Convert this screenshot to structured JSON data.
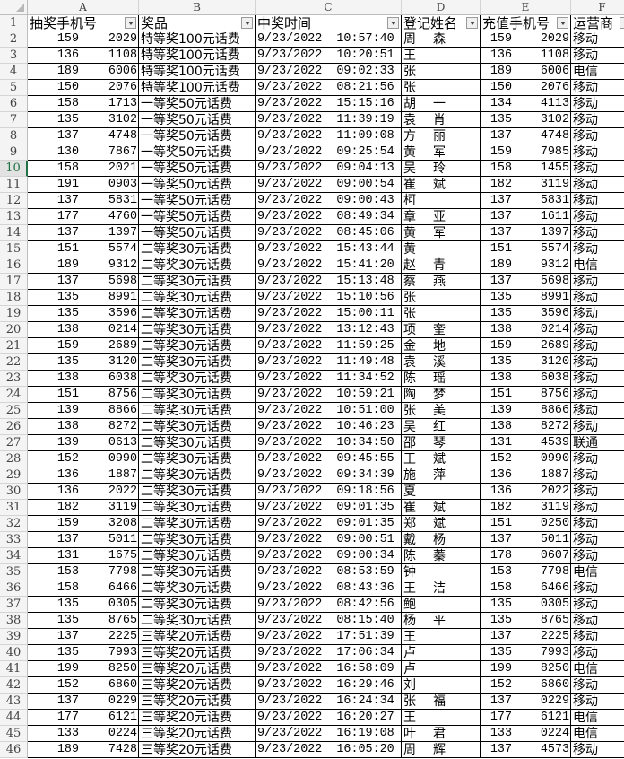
{
  "column_letters": [
    "A",
    "B",
    "C",
    "D",
    "E",
    "F"
  ],
  "headers": [
    "抽奖手机号",
    "奖品",
    "中奖时间",
    "登记姓名",
    "充值手机号",
    "运营商"
  ],
  "selected_row": 10,
  "redaction_color": "#5b9bd5",
  "rows": [
    {
      "n": "2",
      "a_pre": "159",
      "a_suf": "2029",
      "prize": "特等奖100元话费",
      "time": "9/23/2022  10:57:40",
      "name_first": "周",
      "name_last": "森",
      "e_pre": "159",
      "e_suf": "2029",
      "carrier": "移动"
    },
    {
      "n": "3",
      "a_pre": "136",
      "a_suf": "1108",
      "prize": "特等奖100元话费",
      "time": "9/23/2022  10:20:51",
      "name_first": "王",
      "name_last": "",
      "e_pre": "136",
      "e_suf": "1108",
      "carrier": "移动"
    },
    {
      "n": "4",
      "a_pre": "189",
      "a_suf": "6006",
      "prize": "特等奖100元话费",
      "time": "9/23/2022  09:02:33",
      "name_first": "张",
      "name_last": "",
      "e_pre": "189",
      "e_suf": "6006",
      "carrier": "电信"
    },
    {
      "n": "5",
      "a_pre": "150",
      "a_suf": "2076",
      "prize": "特等奖100元话费",
      "time": "9/23/2022  08:21:56",
      "name_first": "张",
      "name_last": "",
      "e_pre": "150",
      "e_suf": "2076",
      "carrier": "移动"
    },
    {
      "n": "6",
      "a_pre": "158",
      "a_suf": "1713",
      "prize": "一等奖50元话费",
      "time": "9/23/2022  15:15:16",
      "name_first": "胡",
      "name_last": "一",
      "e_pre": "134",
      "e_suf": "4113",
      "carrier": "移动"
    },
    {
      "n": "7",
      "a_pre": "135",
      "a_suf": "3102",
      "prize": "一等奖50元话费",
      "time": "9/23/2022  11:39:19",
      "name_first": "袁",
      "name_last": "肖",
      "e_pre": "135",
      "e_suf": "3102",
      "carrier": "移动"
    },
    {
      "n": "8",
      "a_pre": "137",
      "a_suf": "4748",
      "prize": "一等奖50元话费",
      "time": "9/23/2022  11:09:08",
      "name_first": "方",
      "name_last": "丽",
      "e_pre": "137",
      "e_suf": "4748",
      "carrier": "移动"
    },
    {
      "n": "9",
      "a_pre": "130",
      "a_suf": "7867",
      "prize": "一等奖50元话费",
      "time": "9/23/2022  09:25:54",
      "name_first": "黄",
      "name_last": "军",
      "e_pre": "159",
      "e_suf": "7985",
      "carrier": "移动"
    },
    {
      "n": "10",
      "a_pre": "158",
      "a_suf": "2021",
      "prize": "一等奖50元话费",
      "time": "9/23/2022  09:04:13",
      "name_first": "吴",
      "name_last": "玲",
      "e_pre": "158",
      "e_suf": "1455",
      "carrier": "移动"
    },
    {
      "n": "11",
      "a_pre": "191",
      "a_suf": "0903",
      "prize": "一等奖50元话费",
      "time": "9/23/2022  09:00:54",
      "name_first": "崔",
      "name_last": "斌",
      "e_pre": "182",
      "e_suf": "3119",
      "carrier": "移动"
    },
    {
      "n": "12",
      "a_pre": "137",
      "a_suf": "5831",
      "prize": "一等奖50元话费",
      "time": "9/23/2022  09:00:43",
      "name_first": "柯",
      "name_last": "",
      "e_pre": "137",
      "e_suf": "5831",
      "carrier": "移动"
    },
    {
      "n": "13",
      "a_pre": "177",
      "a_suf": "4760",
      "prize": "一等奖50元话费",
      "time": "9/23/2022  08:49:34",
      "name_first": "章",
      "name_last": "亚",
      "e_pre": "137",
      "e_suf": "1611",
      "carrier": "移动"
    },
    {
      "n": "14",
      "a_pre": "137",
      "a_suf": "1397",
      "prize": "一等奖50元话费",
      "time": "9/23/2022  08:45:06",
      "name_first": "黄",
      "name_last": "军",
      "e_pre": "137",
      "e_suf": "1397",
      "carrier": "移动"
    },
    {
      "n": "15",
      "a_pre": "151",
      "a_suf": "5574",
      "prize": "二等奖30元话费",
      "time": "9/23/2022  15:43:44",
      "name_first": "黄",
      "name_last": "",
      "e_pre": "151",
      "e_suf": "5574",
      "carrier": "移动"
    },
    {
      "n": "16",
      "a_pre": "189",
      "a_suf": "9312",
      "prize": "二等奖30元话费",
      "time": "9/23/2022  15:41:20",
      "name_first": "赵",
      "name_last": "青",
      "e_pre": "189",
      "e_suf": "9312",
      "carrier": "电信"
    },
    {
      "n": "17",
      "a_pre": "137",
      "a_suf": "5698",
      "prize": "二等奖30元话费",
      "time": "9/23/2022  15:13:48",
      "name_first": "蔡",
      "name_last": "燕",
      "e_pre": "137",
      "e_suf": "5698",
      "carrier": "移动"
    },
    {
      "n": "18",
      "a_pre": "135",
      "a_suf": "8991",
      "prize": "二等奖30元话费",
      "time": "9/23/2022  15:10:56",
      "name_first": "张",
      "name_last": "",
      "e_pre": "135",
      "e_suf": "8991",
      "carrier": "移动"
    },
    {
      "n": "19",
      "a_pre": "135",
      "a_suf": "3596",
      "prize": "二等奖30元话费",
      "time": "9/23/2022  15:00:11",
      "name_first": "张",
      "name_last": "",
      "e_pre": "135",
      "e_suf": "3596",
      "carrier": "移动"
    },
    {
      "n": "20",
      "a_pre": "138",
      "a_suf": "0214",
      "prize": "二等奖30元话费",
      "time": "9/23/2022  13:12:43",
      "name_first": "项",
      "name_last": "奎",
      "e_pre": "138",
      "e_suf": "0214",
      "carrier": "移动"
    },
    {
      "n": "21",
      "a_pre": "159",
      "a_suf": "2689",
      "prize": "二等奖30元话费",
      "time": "9/23/2022  11:59:25",
      "name_first": "金",
      "name_last": "地",
      "e_pre": "159",
      "e_suf": "2689",
      "carrier": "移动"
    },
    {
      "n": "22",
      "a_pre": "135",
      "a_suf": "3120",
      "prize": "二等奖30元话费",
      "time": "9/23/2022  11:49:48",
      "name_first": "袁",
      "name_last": "溪",
      "e_pre": "135",
      "e_suf": "3120",
      "carrier": "移动"
    },
    {
      "n": "23",
      "a_pre": "138",
      "a_suf": "6038",
      "prize": "二等奖30元话费",
      "time": "9/23/2022  11:34:52",
      "name_first": "陈",
      "name_last": "瑶",
      "e_pre": "138",
      "e_suf": "6038",
      "carrier": "移动"
    },
    {
      "n": "24",
      "a_pre": "151",
      "a_suf": "8756",
      "prize": "二等奖30元话费",
      "time": "9/23/2022  10:59:21",
      "name_first": "陶",
      "name_last": "梦",
      "e_pre": "151",
      "e_suf": "8756",
      "carrier": "移动"
    },
    {
      "n": "25",
      "a_pre": "139",
      "a_suf": "8866",
      "prize": "二等奖30元话费",
      "time": "9/23/2022  10:51:00",
      "name_first": "张",
      "name_last": "美",
      "e_pre": "139",
      "e_suf": "8866",
      "carrier": "移动"
    },
    {
      "n": "26",
      "a_pre": "138",
      "a_suf": "8272",
      "prize": "二等奖30元话费",
      "time": "9/23/2022  10:46:23",
      "name_first": "吴",
      "name_last": "红",
      "e_pre": "138",
      "e_suf": "8272",
      "carrier": "移动"
    },
    {
      "n": "27",
      "a_pre": "139",
      "a_suf": "0613",
      "prize": "二等奖30元话费",
      "time": "9/23/2022  10:34:50",
      "name_first": "邵",
      "name_last": "琴",
      "e_pre": "131",
      "e_suf": "4539",
      "carrier": "联通"
    },
    {
      "n": "28",
      "a_pre": "152",
      "a_suf": "0990",
      "prize": "二等奖30元话费",
      "time": "9/23/2022  09:45:55",
      "name_first": "王",
      "name_last": "斌",
      "e_pre": "152",
      "e_suf": "0990",
      "carrier": "移动"
    },
    {
      "n": "29",
      "a_pre": "136",
      "a_suf": "1887",
      "prize": "二等奖30元话费",
      "time": "9/23/2022  09:34:39",
      "name_first": "施",
      "name_last": "萍",
      "e_pre": "136",
      "e_suf": "1887",
      "carrier": "移动"
    },
    {
      "n": "30",
      "a_pre": "136",
      "a_suf": "2022",
      "prize": "二等奖30元话费",
      "time": "9/23/2022  09:18:56",
      "name_first": "夏",
      "name_last": "",
      "e_pre": "136",
      "e_suf": "2022",
      "carrier": "移动"
    },
    {
      "n": "31",
      "a_pre": "182",
      "a_suf": "3119",
      "prize": "二等奖30元话费",
      "time": "9/23/2022  09:01:35",
      "name_first": "崔",
      "name_last": "斌",
      "e_pre": "182",
      "e_suf": "3119",
      "carrier": "移动"
    },
    {
      "n": "32",
      "a_pre": "159",
      "a_suf": "3208",
      "prize": "二等奖30元话费",
      "time": "9/23/2022  09:01:35",
      "name_first": "郑",
      "name_last": "斌",
      "e_pre": "151",
      "e_suf": "0250",
      "carrier": "移动"
    },
    {
      "n": "33",
      "a_pre": "137",
      "a_suf": "5011",
      "prize": "二等奖30元话费",
      "time": "9/23/2022  09:00:51",
      "name_first": "戴",
      "name_last": "杨",
      "e_pre": "137",
      "e_suf": "5011",
      "carrier": "移动"
    },
    {
      "n": "34",
      "a_pre": "131",
      "a_suf": "1675",
      "prize": "二等奖30元话费",
      "time": "9/23/2022  09:00:34",
      "name_first": "陈",
      "name_last": "蓁",
      "e_pre": "178",
      "e_suf": "0607",
      "carrier": "移动"
    },
    {
      "n": "35",
      "a_pre": "153",
      "a_suf": "7798",
      "prize": "二等奖30元话费",
      "time": "9/23/2022  08:53:59",
      "name_first": "钟",
      "name_last": "",
      "e_pre": "153",
      "e_suf": "7798",
      "carrier": "电信"
    },
    {
      "n": "36",
      "a_pre": "158",
      "a_suf": "6466",
      "prize": "二等奖30元话费",
      "time": "9/23/2022  08:43:36",
      "name_first": "王",
      "name_last": "洁",
      "e_pre": "158",
      "e_suf": "6466",
      "carrier": "移动"
    },
    {
      "n": "37",
      "a_pre": "135",
      "a_suf": "0305",
      "prize": "二等奖30元话费",
      "time": "9/23/2022  08:42:56",
      "name_first": "鲍",
      "name_last": "",
      "e_pre": "135",
      "e_suf": "0305",
      "carrier": "移动"
    },
    {
      "n": "38",
      "a_pre": "135",
      "a_suf": "8765",
      "prize": "二等奖30元话费",
      "time": "9/23/2022  08:15:40",
      "name_first": "杨",
      "name_last": "平",
      "e_pre": "135",
      "e_suf": "8765",
      "carrier": "移动"
    },
    {
      "n": "39",
      "a_pre": "137",
      "a_suf": "2225",
      "prize": "三等奖20元话费",
      "time": "9/23/2022  17:51:39",
      "name_first": "王",
      "name_last": "",
      "e_pre": "137",
      "e_suf": "2225",
      "carrier": "移动"
    },
    {
      "n": "40",
      "a_pre": "135",
      "a_suf": "7993",
      "prize": "三等奖20元话费",
      "time": "9/23/2022  17:06:34",
      "name_first": "卢",
      "name_last": "",
      "e_pre": "135",
      "e_suf": "7993",
      "carrier": "移动"
    },
    {
      "n": "41",
      "a_pre": "199",
      "a_suf": "8250",
      "prize": "三等奖20元话费",
      "time": "9/23/2022  16:58:09",
      "name_first": "卢",
      "name_last": "",
      "e_pre": "199",
      "e_suf": "8250",
      "carrier": "电信"
    },
    {
      "n": "42",
      "a_pre": "152",
      "a_suf": "6860",
      "prize": "三等奖20元话费",
      "time": "9/23/2022  16:29:46",
      "name_first": "刘",
      "name_last": "",
      "e_pre": "152",
      "e_suf": "6860",
      "carrier": "移动"
    },
    {
      "n": "43",
      "a_pre": "137",
      "a_suf": "0229",
      "prize": "三等奖20元话费",
      "time": "9/23/2022  16:24:34",
      "name_first": "张",
      "name_last": "福",
      "e_pre": "137",
      "e_suf": "0229",
      "carrier": "移动"
    },
    {
      "n": "44",
      "a_pre": "177",
      "a_suf": "6121",
      "prize": "三等奖20元话费",
      "time": "9/23/2022  16:20:27",
      "name_first": "王",
      "name_last": "",
      "e_pre": "177",
      "e_suf": "6121",
      "carrier": "电信"
    },
    {
      "n": "45",
      "a_pre": "133",
      "a_suf": "0224",
      "prize": "三等奖20元话费",
      "time": "9/23/2022  16:19:08",
      "name_first": "叶",
      "name_last": "君",
      "e_pre": "133",
      "e_suf": "0224",
      "carrier": "电信"
    },
    {
      "n": "46",
      "a_pre": "189",
      "a_suf": "7428",
      "prize": "三等奖20元话费",
      "time": "9/23/2022  16:05:20",
      "name_first": "周",
      "name_last": "辉",
      "e_pre": "137",
      "e_suf": "4573",
      "carrier": "移动"
    }
  ]
}
